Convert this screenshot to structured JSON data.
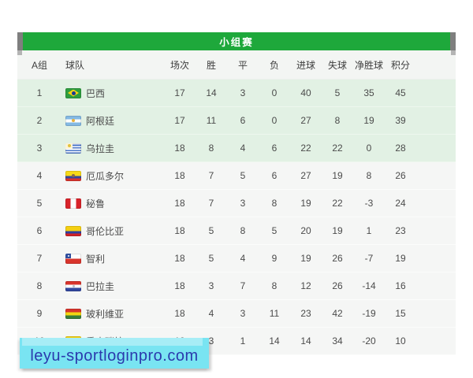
{
  "table": {
    "title": "小组赛",
    "columns": [
      "A组",
      "球队",
      "场次",
      "胜",
      "平",
      "负",
      "进球",
      "失球",
      "净胜球",
      "积分"
    ],
    "rows": [
      {
        "rank": "1",
        "flag": "brazil",
        "team": "巴西",
        "stats": [
          "17",
          "14",
          "3",
          "0",
          "40",
          "5",
          "35",
          "45"
        ],
        "qualified": true
      },
      {
        "rank": "2",
        "flag": "argentina",
        "team": "阿根廷",
        "stats": [
          "17",
          "11",
          "6",
          "0",
          "27",
          "8",
          "19",
          "39"
        ],
        "qualified": true
      },
      {
        "rank": "3",
        "flag": "uruguay",
        "team": "乌拉圭",
        "stats": [
          "18",
          "8",
          "4",
          "6",
          "22",
          "22",
          "0",
          "28"
        ],
        "qualified": true
      },
      {
        "rank": "4",
        "flag": "ecuador",
        "team": "厄瓜多尔",
        "stats": [
          "18",
          "7",
          "5",
          "6",
          "27",
          "19",
          "8",
          "26"
        ],
        "qualified": false
      },
      {
        "rank": "5",
        "flag": "peru",
        "team": "秘鲁",
        "stats": [
          "18",
          "7",
          "3",
          "8",
          "19",
          "22",
          "-3",
          "24"
        ],
        "qualified": false
      },
      {
        "rank": "6",
        "flag": "colombia",
        "team": "哥伦比亚",
        "stats": [
          "18",
          "5",
          "8",
          "5",
          "20",
          "19",
          "1",
          "23"
        ],
        "qualified": false
      },
      {
        "rank": "7",
        "flag": "chile",
        "team": "智利",
        "stats": [
          "18",
          "5",
          "4",
          "9",
          "19",
          "26",
          "-7",
          "19"
        ],
        "qualified": false
      },
      {
        "rank": "8",
        "flag": "paraguay",
        "team": "巴拉圭",
        "stats": [
          "18",
          "3",
          "7",
          "8",
          "12",
          "26",
          "-14",
          "16"
        ],
        "qualified": false
      },
      {
        "rank": "9",
        "flag": "bolivia",
        "team": "玻利维亚",
        "stats": [
          "18",
          "4",
          "3",
          "11",
          "23",
          "42",
          "-19",
          "15"
        ],
        "qualified": false
      },
      {
        "rank": "10",
        "flag": "venezuela",
        "team": "委内瑞拉",
        "stats": [
          "18",
          "3",
          "1",
          "14",
          "14",
          "34",
          "-20",
          "10"
        ],
        "qualified": false
      }
    ]
  },
  "watermark": {
    "text": "leyu-sportloginpro.com"
  },
  "colors": {
    "banner_green": "#1ea83b",
    "qualified_row_bg": "#e2f1e4",
    "row_bg": "#f5f6f5",
    "watermark_bg": "#79e4f2",
    "watermark_text": "#2b3aad"
  }
}
